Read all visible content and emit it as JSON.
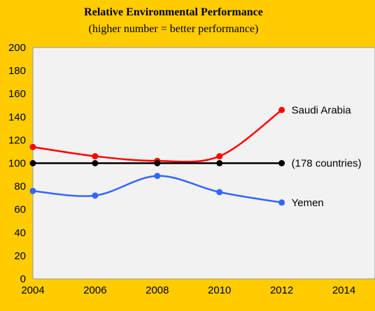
{
  "chart_data": {
    "type": "line",
    "title": "Relative Environmental Performance",
    "subtitle": "(higher  number = better performance)",
    "x": [
      2004,
      2006,
      2008,
      2010,
      2012
    ],
    "xlim": [
      2004,
      2015
    ],
    "xticks": [
      "2004",
      "2006",
      "2008",
      "2010",
      "2012",
      "2014"
    ],
    "ylim": [
      0,
      200
    ],
    "yticks": [
      "0",
      "20",
      "40",
      "60",
      "80",
      "100",
      "120",
      "140",
      "160",
      "180",
      "200"
    ],
    "grid": "none",
    "series": [
      {
        "name": "Saudi Arabia",
        "color": "#ff0000",
        "values": [
          114,
          106,
          102,
          106,
          146
        ]
      },
      {
        "name": "(178 countries)",
        "color": "#000000",
        "values": [
          100,
          100,
          100,
          100,
          100
        ]
      },
      {
        "name": "Yemen",
        "color": "#3366ff",
        "values": [
          76,
          72,
          89,
          75,
          66
        ]
      }
    ]
  }
}
